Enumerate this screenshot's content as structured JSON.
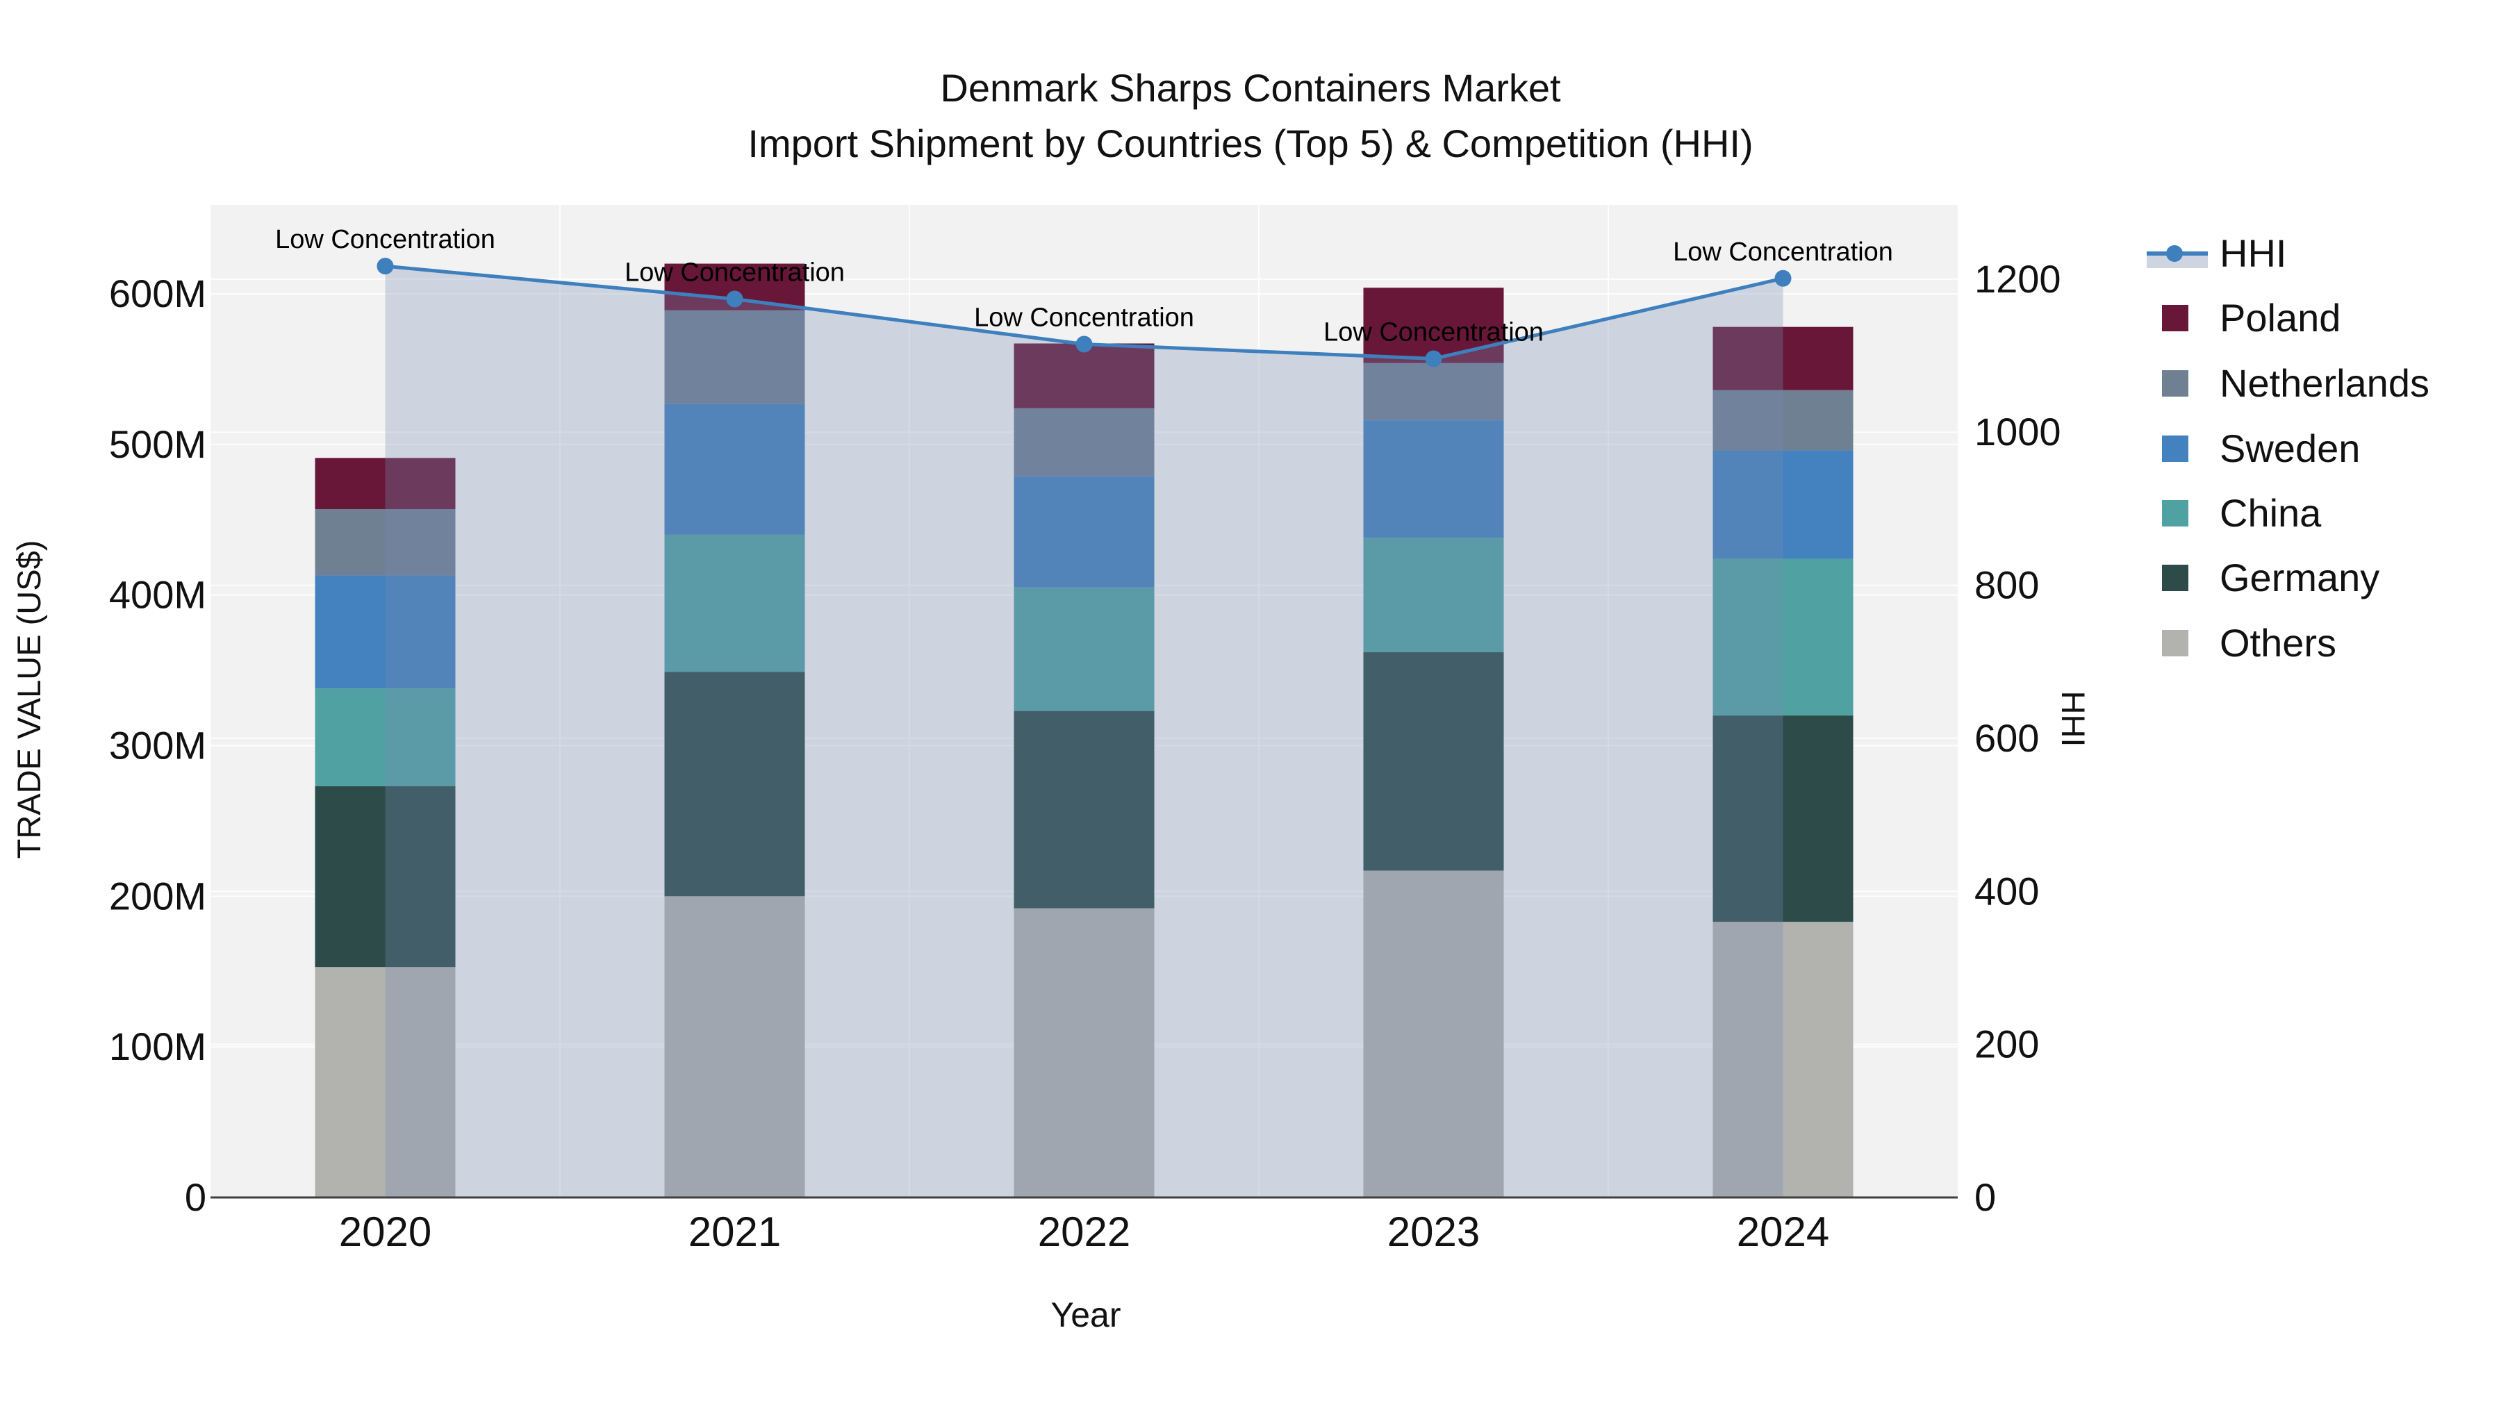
{
  "title": {
    "line1": "Denmark Sharps Containers Market",
    "line2": "Import Shipment by Countries (Top 5) & Competition (HHI)"
  },
  "axes": {
    "x": {
      "title": "Year",
      "categories": [
        "2020",
        "2021",
        "2022",
        "2023",
        "2024"
      ]
    },
    "y_left": {
      "title": "TRADE VALUE (US$)",
      "tick_labels": [
        "0",
        "100M",
        "200M",
        "300M",
        "400M",
        "500M",
        "600M"
      ],
      "tick_values": [
        0,
        100,
        200,
        300,
        400,
        500,
        600
      ],
      "max": 659
    },
    "y_right": {
      "title": "HHI",
      "tick_labels": [
        "0",
        "200",
        "400",
        "600",
        "800",
        "1000",
        "1200"
      ],
      "tick_values": [
        0,
        200,
        400,
        600,
        800,
        1000,
        1200
      ],
      "max": 1297
    }
  },
  "legend": {
    "items": [
      {
        "label": "HHI",
        "marker": "line-marker",
        "color": "#3e7fbd"
      },
      {
        "label": "Poland",
        "marker": "square",
        "color": "#681739"
      },
      {
        "label": "Netherlands",
        "marker": "square",
        "color": "#6f8093"
      },
      {
        "label": "Sweden",
        "marker": "square",
        "color": "#4382be"
      },
      {
        "label": "China",
        "marker": "square",
        "color": "#50a1a2"
      },
      {
        "label": "Germany",
        "marker": "square",
        "color": "#2c4b49"
      },
      {
        "label": "Others",
        "marker": "square",
        "color": "#b2b2af"
      }
    ]
  },
  "chart_data": {
    "type": "bar+line",
    "title": "Denmark Sharps Containers Market — Import Shipment by Countries (Top 5) & Competition (HHI)",
    "categories": [
      "2020",
      "2021",
      "2022",
      "2023",
      "2024"
    ],
    "bar_unit": "million US$",
    "stack_order_bottom_to_top": [
      "Others",
      "Germany",
      "China",
      "Sweden",
      "Netherlands",
      "Poland"
    ],
    "series": [
      {
        "name": "Others",
        "values": [
          153,
          200,
          192,
          217,
          183
        ]
      },
      {
        "name": "Germany",
        "values": [
          120,
          149,
          131,
          145,
          137
        ]
      },
      {
        "name": "China",
        "values": [
          65,
          91,
          82,
          76,
          104
        ]
      },
      {
        "name": "Sweden",
        "values": [
          75,
          87,
          74,
          78,
          72
        ]
      },
      {
        "name": "Netherlands",
        "values": [
          44,
          62,
          45,
          38,
          40
        ]
      },
      {
        "name": "Poland",
        "values": [
          34,
          31,
          43,
          50,
          42
        ]
      }
    ],
    "bar_totals_million": [
      491,
      620,
      567,
      604,
      578
    ],
    "line_series": {
      "name": "HHI",
      "axis": "right",
      "values": [
        1217,
        1174,
        1115,
        1096,
        1201
      ]
    },
    "area_fill_under_line": true,
    "annotations": [
      "Low Concentration",
      "Low Concentration",
      "Low Concentration",
      "Low Concentration",
      "Low Concentration"
    ],
    "ylim_left": [
      0,
      659
    ],
    "ylim_right": [
      0,
      1297
    ],
    "legend_position": "right",
    "grid": "horizontal-both-axes"
  },
  "colors": {
    "poland": "#681739",
    "netherlands": "#6f8093",
    "sweden": "#4382be",
    "china": "#50a1a2",
    "germany": "#2c4b49",
    "others": "#b2b2af",
    "hhi_line": "#3e7fbd",
    "band_fill": "rgba(120,140,179,0.30)",
    "legend_band": "#cfd5e0",
    "plot_bg": "#f2f2f3",
    "gridline": "#ffffff",
    "axis_line": "#3f3f3f",
    "text": "#111111"
  }
}
